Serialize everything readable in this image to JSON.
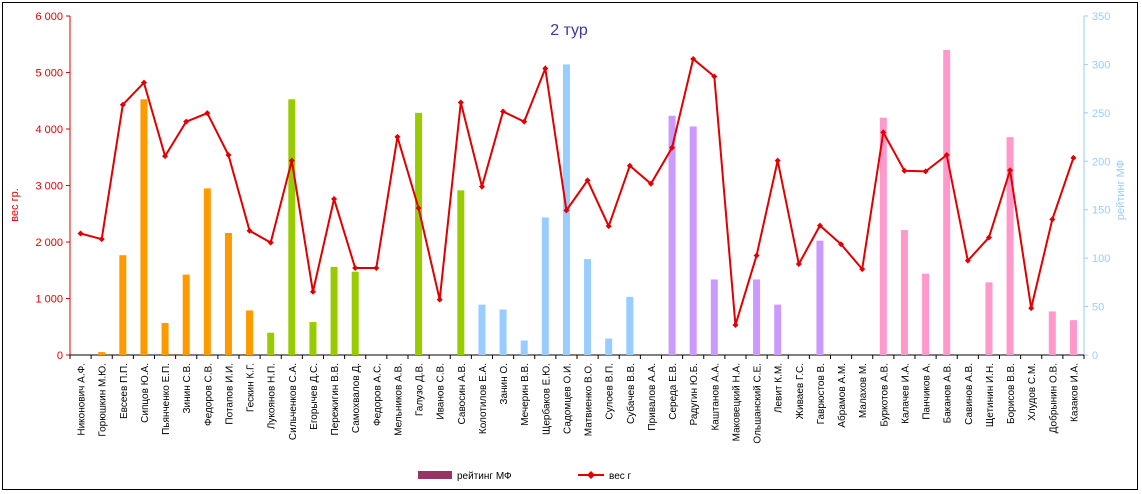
{
  "chart_data": {
    "type": "bar+line",
    "title": "2 тур",
    "ylabel_left": "вес гр.",
    "ylabel_right": "рейтинг МФ",
    "ylim_left": [
      0,
      6000
    ],
    "ylim_right": [
      0,
      350
    ],
    "yticks_left": [
      "0",
      "1 000",
      "2 000",
      "3 000",
      "4 000",
      "5 000",
      "6 000"
    ],
    "yticks_right": [
      "0",
      "50",
      "100",
      "150",
      "200",
      "250",
      "300",
      "350"
    ],
    "legend": {
      "bar_label": "рейтинг МФ",
      "line_label": "вес г",
      "placement": "bottom"
    },
    "colors": {
      "left_axis": "#e00000",
      "right_axis": "#99ccff",
      "line": "#e00000",
      "legend_bar": "#993366"
    },
    "categories": [
      "Никонович А.Ф.",
      "Горюшкин М.Ю.",
      "Евсеев П.П.",
      "Сипцов Ю.А.",
      "Пьянченко Е.П.",
      "Зинин С.В.",
      "Федоров С.В.",
      "Потапов И.И.",
      "Гескин К.Г.",
      "Лукоянов Н.П.",
      "Сильченков С.А.",
      "Егорычев Д.С.",
      "Пережигин В.В.",
      "Самохвалов Д.",
      "Федоров А.С.",
      "Мельников А.В.",
      "Галузо Д.В.",
      "Иванов С.В.",
      "Савосин А.В.",
      "Колотилов Е.А.",
      "Занин О.",
      "Мечерин В.В.",
      "Щербаков Е.Ю.",
      "Садомцев О.И.",
      "Матвиенко В.О.",
      "Сулоев В.П.",
      "Субачев В.В.",
      "Привалов А.А.",
      "Середа Е.В.",
      "Радугин Ю.Б.",
      "Каштанов А.А.",
      "Маковецкий Н.А.",
      "Ольшанский С.Е.",
      "Левит К.М.",
      "Живаев Г.С.",
      "Гаврюстов В.",
      "Абрамов А.М.",
      "Малахов М.",
      "Буркотов А.В.",
      "Калачев И.А.",
      "Панчиков А.",
      "Баканов А.В.",
      "Савинов А.В.",
      "Щетинин И.Н.",
      "Борисов В.В.",
      "Хлудов С.М.",
      "Добрынин О.В.",
      "Казаков И.А."
    ],
    "rating": [
      0,
      3,
      103,
      264,
      33,
      83,
      172,
      126,
      46,
      23,
      264,
      34,
      91,
      86,
      0,
      0,
      250,
      0,
      170,
      52,
      47,
      15,
      142,
      300,
      99,
      17,
      60,
      0,
      247,
      236,
      78,
      0,
      78,
      52,
      0,
      118,
      0,
      0,
      245,
      129,
      84,
      315,
      0,
      75,
      225,
      0,
      45,
      36
    ],
    "bar_colors": [
      "#ff9900",
      "#ff9900",
      "#ff9900",
      "#ff9900",
      "#ff9900",
      "#ff9900",
      "#ff9900",
      "#ff9900",
      "#ff9900",
      "#99cc00",
      "#99cc00",
      "#99cc00",
      "#99cc00",
      "#99cc00",
      "#99cc00",
      "#99cc00",
      "#99cc00",
      "#99cc00",
      "#99cc00",
      "#99ccff",
      "#99ccff",
      "#99ccff",
      "#99ccff",
      "#99ccff",
      "#99ccff",
      "#99ccff",
      "#99ccff",
      "#99ccff",
      "#cc99ff",
      "#cc99ff",
      "#cc99ff",
      "#cc99ff",
      "#cc99ff",
      "#cc99ff",
      "#cc99ff",
      "#cc99ff",
      "#cc99ff",
      "#cc99ff",
      "#ff99cc",
      "#ff99cc",
      "#ff99cc",
      "#ff99cc",
      "#ff99cc",
      "#ff99cc",
      "#ff99cc",
      "#ff99cc",
      "#ff99cc",
      "#ff99cc"
    ],
    "weight": [
      2150,
      2050,
      4430,
      4820,
      3520,
      4130,
      4280,
      3540,
      2200,
      1990,
      3440,
      1120,
      2760,
      1540,
      1540,
      3860,
      2600,
      980,
      4470,
      2980,
      4310,
      4130,
      5070,
      2560,
      3090,
      2280,
      3350,
      3030,
      3670,
      5240,
      4930,
      530,
      1760,
      3440,
      1610,
      2290,
      1960,
      1520,
      3940,
      3260,
      3250,
      3540,
      1670,
      2080,
      3270,
      830,
      2400,
      3490
    ]
  }
}
